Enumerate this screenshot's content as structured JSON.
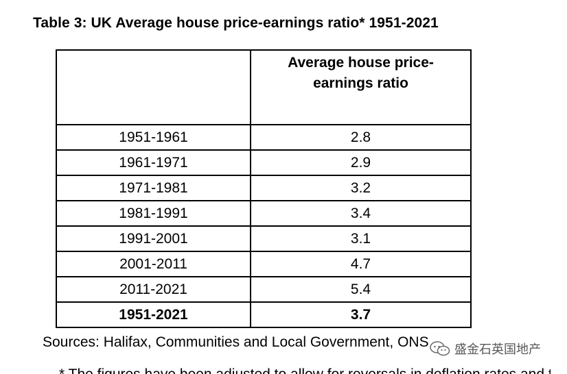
{
  "document": {
    "title": "Table 3: UK Average  house price-earnings ratio* 1951-2021",
    "table": {
      "header": {
        "col1": "",
        "col2_line1": "Average  house price-",
        "col2_line2": "earnings ratio"
      },
      "rows": [
        {
          "period": "1951-1961",
          "ratio": "2.8"
        },
        {
          "period": "1961-1971",
          "ratio": "2.9"
        },
        {
          "period": "1971-1981",
          "ratio": "3.2"
        },
        {
          "period": "1981-1991",
          "ratio": "3.4"
        },
        {
          "period": "1991-2001",
          "ratio": "3.1"
        },
        {
          "period": "2001-2011",
          "ratio": "4.7"
        },
        {
          "period": "2011-2021",
          "ratio": "5.4"
        }
      ],
      "total": {
        "period": "1951-2021",
        "ratio": "3.7"
      }
    },
    "sources": "Sources: Halifax, Communities and Local Government, ONS",
    "cut_off_text": "* The figures have been adjusted to allow for reversals in deflation rates and the",
    "watermark": {
      "icon": "wechat-icon",
      "text": "盛金石英国地产"
    }
  }
}
